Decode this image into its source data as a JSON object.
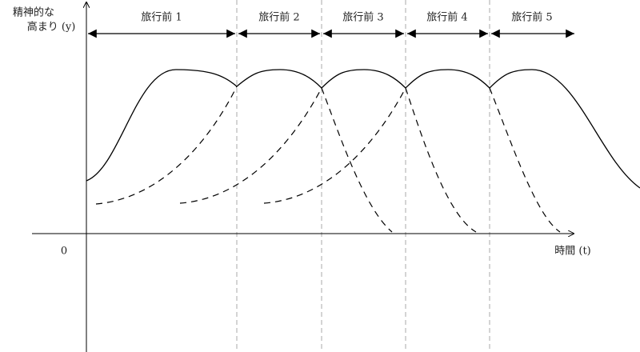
{
  "y_axis_label": {
    "line1": "精神的な",
    "line2": "高まり (y)"
  },
  "origin_label": "0",
  "x_axis_label": "時間 (t)",
  "phases": [
    "旅行前 1",
    "旅行前 2",
    "旅行前 3",
    "旅行前 4",
    "旅行前 5"
  ]
}
